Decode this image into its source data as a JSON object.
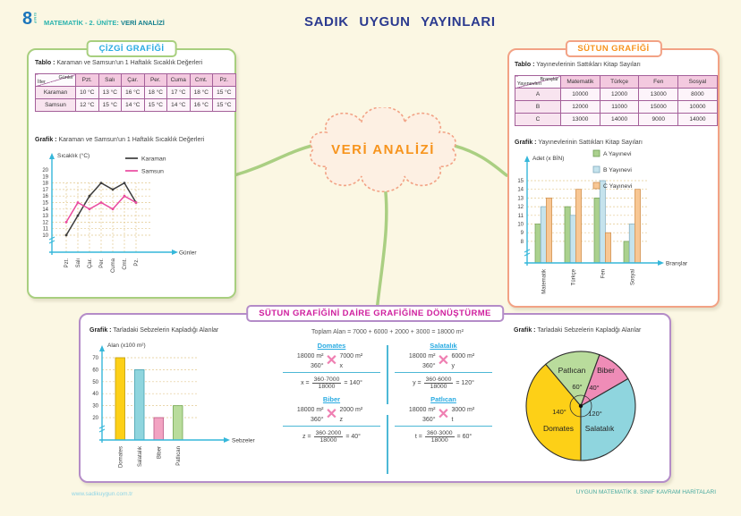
{
  "page": {
    "logo_number": "8",
    "logo_grade": "SINIF",
    "unit_header_part1": "MATEMATİK - 2. ÜNİTE:",
    "unit_header_part2": "VERİ ANALİZİ",
    "main_title": "SADIK UYGUN YAYINLARI",
    "center_topic": "VERİ ANALİZİ",
    "footer_left": "www.sadikuygun.com.tr",
    "footer_right": "UYGUN MATEMATİK 8. SINIF KAVRAM HARİTALARI"
  },
  "accent_colors": {
    "line_panel_border": "#a8cf7f",
    "bar_panel_border": "#f2a285",
    "conversion_panel_border": "#b48cc8",
    "line_panel_title": "#29abe2",
    "bar_panel_title": "#f7941d",
    "conversion_panel_title": "#cf1f9e",
    "axis": "#35b7da",
    "cloud_text": "#f7941d",
    "background": "#fbf7e3"
  },
  "line_panel": {
    "panel_title": "ÇİZGİ GRAFİĞİ",
    "table_label": "Tablo :",
    "table_caption": "Karaman ve Samsun'un 1 Haftalık Sıcaklık Değerleri",
    "graph_label": "Grafik :",
    "graph_caption": "Karaman ve Samsun'un 1 Haftalık Sıcaklık Değerleri",
    "table": {
      "corner_top": "Günler",
      "corner_bottom": "İller",
      "columns": [
        "Pzt.",
        "Salı",
        "Çar.",
        "Per.",
        "Cuma",
        "Cmt.",
        "Pz."
      ],
      "rows": [
        {
          "label": "Karaman",
          "values": [
            "10 °C",
            "13 °C",
            "16 °C",
            "18 °C",
            "17 °C",
            "18 °C",
            "15 °C"
          ]
        },
        {
          "label": "Samsun",
          "values": [
            "12 °C",
            "15 °C",
            "14 °C",
            "15 °C",
            "14 °C",
            "16 °C",
            "15 °C"
          ]
        }
      ]
    }
  },
  "bar_panel": {
    "panel_title": "SÜTUN GRAFİĞİ",
    "table_label": "Tablo :",
    "table_caption": "Yayınevlerinin Sattıkları Kitap Sayıları",
    "graph_label": "Grafik :",
    "graph_caption": "Yayınevlerinin Sattıkları Kitap Sayıları",
    "table": {
      "corner_top": "Branşlar",
      "corner_bottom": "Yayınevleri",
      "columns": [
        "Matematik",
        "Türkçe",
        "Fen",
        "Sosyal"
      ],
      "rows": [
        {
          "label": "A",
          "values": [
            "10000",
            "12000",
            "13000",
            "8000"
          ]
        },
        {
          "label": "B",
          "values": [
            "12000",
            "11000",
            "15000",
            "10000"
          ]
        },
        {
          "label": "C",
          "values": [
            "13000",
            "14000",
            "9000",
            "14000"
          ]
        }
      ]
    }
  },
  "conversion_panel": {
    "panel_title": "SÜTUN GRAFİĞİNİ DAİRE GRAFİĞİNE DÖNÜŞTÜRME",
    "left_graph_label": "Grafik :",
    "left_graph_caption": "Tarladaki Sebzelerin Kapladığı Alanlar",
    "right_graph_label": "Grafik :",
    "right_graph_caption": "Tarladaki Sebzelerin Kapladğı Alanlar",
    "total_formula": "Toplam Alan = 7000 + 6000 + 2000 + 3000 = 18000 m²",
    "calcs": [
      {
        "name": "Domates",
        "row1_left": "18000 m²",
        "row1_right": "7000 m²",
        "row2_left": "360°",
        "row2_right": "x",
        "result_var": "x =",
        "numerator": "360·7000",
        "denominator": "18000",
        "result": "= 140°"
      },
      {
        "name": "Salatalık",
        "row1_left": "18000 m²",
        "row1_right": "6000 m²",
        "row2_left": "360°",
        "row2_right": "y",
        "result_var": "y =",
        "numerator": "360·6000",
        "denominator": "18000",
        "result": "= 120°"
      },
      {
        "name": "Biber",
        "row1_left": "18000 m²",
        "row1_right": "2000 m²",
        "row2_left": "360°",
        "row2_right": "z",
        "result_var": "z =",
        "numerator": "360·2000",
        "denominator": "18000",
        "result": "= 40°"
      },
      {
        "name": "Patlıcan",
        "row1_left": "18000 m²",
        "row1_right": "3000 m²",
        "row2_left": "360°",
        "row2_right": "t",
        "result_var": "t =",
        "numerator": "360·3000",
        "denominator": "18000",
        "result": "= 60°"
      }
    ]
  },
  "chart_data": [
    {
      "id": "line-chart",
      "type": "line",
      "title": "Karaman ve Samsun'un 1 Haftalık Sıcaklık Değerleri",
      "xlabel": "Günler",
      "ylabel": "Sıcaklık (°C)",
      "categories": [
        "Pzt.",
        "Salı",
        "Çar.",
        "Per.",
        "Cuma",
        "Cmt.",
        "Pz."
      ],
      "series": [
        {
          "name": "Karaman",
          "color": "#3d3d3d",
          "values": [
            10,
            13,
            16,
            18,
            17,
            18,
            15
          ]
        },
        {
          "name": "Samsun",
          "color": "#ea4a9f",
          "values": [
            12,
            15,
            14,
            15,
            14,
            16,
            15
          ]
        }
      ],
      "yticks": [
        10,
        11,
        12,
        13,
        14,
        15,
        16,
        17,
        18,
        19,
        20
      ],
      "ylim": [
        10,
        20
      ],
      "grid": true,
      "legend_position": "top-right"
    },
    {
      "id": "bar-chart",
      "type": "bar",
      "title": "Yayınevlerinin Sattıkları Kitap Sayıları",
      "xlabel": "Branşlar",
      "ylabel": "Adet (x BİN)",
      "categories": [
        "Matematik",
        "Türkçe",
        "Fen",
        "Sosyal"
      ],
      "series": [
        {
          "name": "A Yayınevi",
          "color": "#abd18e",
          "border": "#6f9e54",
          "values": [
            10,
            12,
            13,
            8
          ]
        },
        {
          "name": "B Yayınevi",
          "color": "#c5e3ed",
          "border": "#7fa9bd",
          "values": [
            12,
            11,
            15,
            10
          ]
        },
        {
          "name": "C Yayınevi",
          "color": "#f8c794",
          "border": "#cd8c4b",
          "values": [
            13,
            14,
            9,
            14
          ]
        }
      ],
      "yticks": [
        8,
        9,
        10,
        11,
        12,
        13,
        14,
        15
      ],
      "ylim": [
        8,
        15
      ],
      "grid": true,
      "legend_position": "top-right"
    },
    {
      "id": "veg-bar-chart",
      "type": "bar",
      "title": "Tarladaki Sebzelerin Kapladığı Alanlar",
      "xlabel": "Sebzeler",
      "ylabel": "Alan (x100 m²)",
      "categories": [
        "Domates",
        "Salatalık",
        "Biber",
        "Patlıcan"
      ],
      "values": [
        70,
        60,
        20,
        30
      ],
      "colors": [
        "#fdd017",
        "#8fd5de",
        "#f2a3c2",
        "#b9dc9c"
      ],
      "borders": [
        "#c7a312",
        "#51a7b5",
        "#c4638f",
        "#7cad5b"
      ],
      "yticks": [
        20,
        30,
        40,
        50,
        60,
        70
      ],
      "ylim": [
        20,
        70
      ],
      "grid": true
    },
    {
      "id": "pie-chart",
      "type": "pie",
      "title": "Tarladaki Sebzelerin Kapladğı Alanlar",
      "start_angle_deg": 90,
      "slices": [
        {
          "label": "Domates",
          "angle": 140,
          "angle_label": "140°",
          "color": "#fdd017"
        },
        {
          "label": "Patlıcan",
          "angle": 60,
          "angle_label": "60°",
          "color": "#b9dc9c"
        },
        {
          "label": "Biber",
          "angle": 40,
          "angle_label": "40°",
          "color": "#ef8cb7"
        },
        {
          "label": "Salatalık",
          "angle": 120,
          "angle_label": "120°",
          "color": "#8fd5de"
        }
      ]
    }
  ]
}
